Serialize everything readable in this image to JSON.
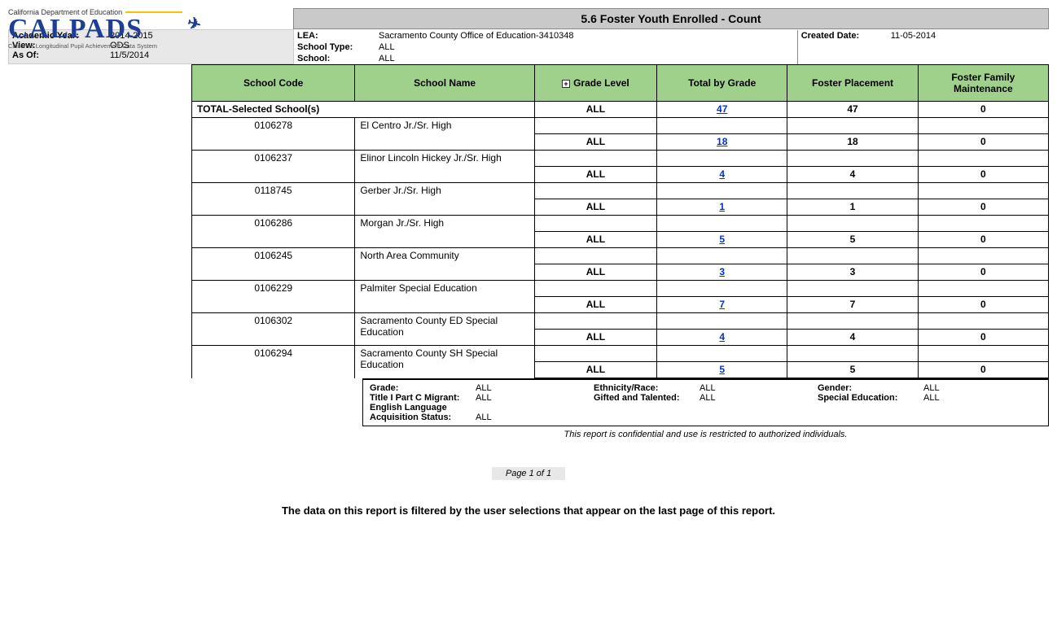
{
  "logo": {
    "superscript": "California Department of Education",
    "brand": "CALPADS",
    "tagline": "California Longitudinal Pupil Achievement Data System"
  },
  "report_title": "5.6 Foster Youth Enrolled - Count",
  "meta": {
    "academic_year_label": "Academic Year:",
    "academic_year": "2014-2015",
    "view_label": "View:",
    "view": "ODS",
    "as_of_label": "As Of:",
    "as_of": "11/5/2014",
    "lea_label": "LEA:",
    "lea": "Sacramento County Office of Education-3410348",
    "school_type_label": "School Type:",
    "school_type": "ALL",
    "school_label": "School:",
    "school": "ALL",
    "created_label": "Created Date:",
    "created": "11-05-2014"
  },
  "columns": {
    "school_code": "School Code",
    "school_name": "School Name",
    "grade_level": "Grade Level",
    "total_by_grade": "Total by Grade",
    "foster_placement": "Foster Placement",
    "foster_maintenance": "Foster Family Maintenance"
  },
  "total_row": {
    "label": "TOTAL-Selected School(s)",
    "grade": "ALL",
    "total_by_grade": "47",
    "placement": "47",
    "maintenance": "0"
  },
  "rows": [
    {
      "code": "0106278",
      "name": "El Centro Jr./Sr. High",
      "grade": "ALL",
      "total": "18",
      "placement": "18",
      "maint": "0"
    },
    {
      "code": "0106237",
      "name": "Elinor Lincoln Hickey Jr./Sr. High",
      "grade": "ALL",
      "total": "4",
      "placement": "4",
      "maint": "0"
    },
    {
      "code": "0118745",
      "name": "Gerber Jr./Sr. High",
      "grade": "ALL",
      "total": "1",
      "placement": "1",
      "maint": "0"
    },
    {
      "code": "0106286",
      "name": "Morgan Jr./Sr. High",
      "grade": "ALL",
      "total": "5",
      "placement": "5",
      "maint": "0"
    },
    {
      "code": "0106245",
      "name": "North Area Community",
      "grade": "ALL",
      "total": "3",
      "placement": "3",
      "maint": "0"
    },
    {
      "code": "0106229",
      "name": "Palmiter Special Education",
      "grade": "ALL",
      "total": "7",
      "placement": "7",
      "maint": "0"
    },
    {
      "code": "0106302",
      "name": "Sacramento County ED Special Education",
      "grade": "ALL",
      "total": "4",
      "placement": "4",
      "maint": "0"
    },
    {
      "code": "0106294",
      "name": "Sacramento County SH Special Education",
      "grade": "ALL",
      "total": "5",
      "placement": "5",
      "maint": "0"
    }
  ],
  "filters": {
    "grade_label": "Grade:",
    "grade": "ALL",
    "title1_label": "Title I Part C Migrant:",
    "title1": "ALL",
    "elas_label": "English Language Acquisition Status:",
    "elas": "ALL",
    "eth_label": "Ethnicity/Race:",
    "eth": "ALL",
    "gifted_label": "Gifted and Talented:",
    "gifted": "ALL",
    "gender_label": "Gender:",
    "gender": "ALL",
    "sped_label": "Special Education:",
    "sped": "ALL"
  },
  "confidential": "This report is confidential and use is restricted to authorized individuals.",
  "page_label": "Page 1 of 1",
  "filter_note": "The data on this report is filtered by the user selections that appear on the last page of this report."
}
